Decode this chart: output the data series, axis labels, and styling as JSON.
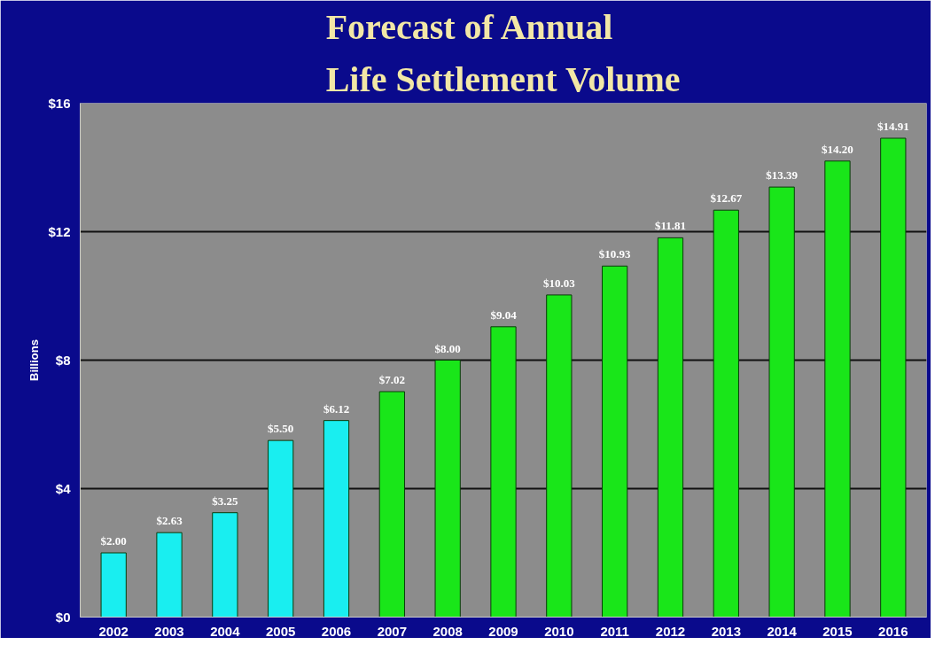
{
  "chart_data": {
    "type": "bar",
    "title": "Forecast of Annual\nLife Settlement Volume",
    "ylabel": "Billions",
    "categories": [
      "2002",
      "2003",
      "2004",
      "2005",
      "2006",
      "2007",
      "2008",
      "2009",
      "2010",
      "2011",
      "2012",
      "2013",
      "2014",
      "2015",
      "2016"
    ],
    "values": [
      2.0,
      2.63,
      3.25,
      5.5,
      6.12,
      7.02,
      8.0,
      9.04,
      10.03,
      10.93,
      11.81,
      12.67,
      13.39,
      14.2,
      14.91
    ],
    "colors": [
      "#19eef0",
      "#19eef0",
      "#19eef0",
      "#19eef0",
      "#19eef0",
      "#19e619",
      "#19e619",
      "#19e619",
      "#19e619",
      "#19e619",
      "#19e619",
      "#19e619",
      "#19e619",
      "#19e619",
      "#19e619"
    ],
    "value_labels": [
      "$2.00",
      "$2.63",
      "$3.25",
      "$5.50",
      "$6.12",
      "$7.02",
      "$8.00",
      "$9.04",
      "$10.03",
      "$10.93",
      "$11.81",
      "$12.67",
      "$13.39",
      "$14.20",
      "$14.91"
    ],
    "ylim": [
      0,
      16
    ],
    "yticks": [
      {
        "value": 0,
        "label": "$0"
      },
      {
        "value": 4,
        "label": "$4"
      },
      {
        "value": 8,
        "label": "$8"
      },
      {
        "value": 12,
        "label": "$12"
      },
      {
        "value": 16,
        "label": "$16"
      }
    ],
    "grid": "y"
  }
}
